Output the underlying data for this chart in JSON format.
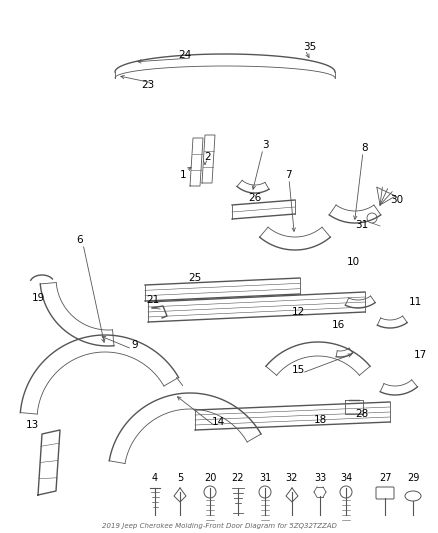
{
  "title": "2019 Jeep Cherokee Molding-Front Door Diagram for 5ZQ32TZZAD",
  "bg": "#ffffff",
  "line_color": "#555555",
  "label_color": "#000000",
  "label_fs": 7.5
}
